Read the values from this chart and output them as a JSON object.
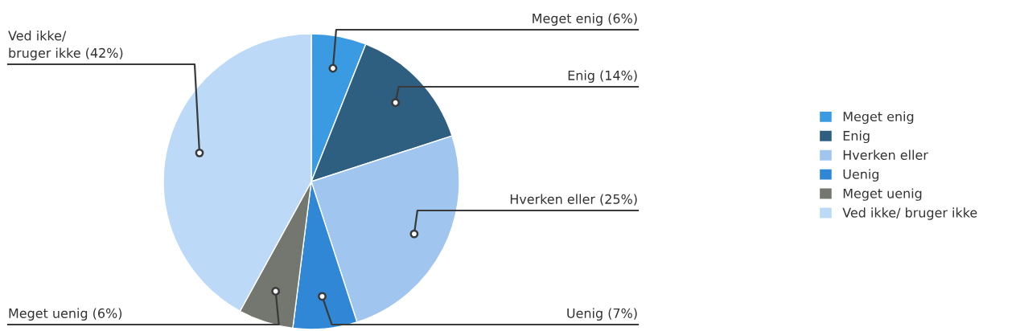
{
  "chart_data": {
    "type": "pie",
    "categories": [
      "Meget enig",
      "Enig",
      "Hverken eller",
      "Uenig",
      "Meget uenig",
      "Ved ikke/ bruger ikke"
    ],
    "values": [
      6,
      14,
      25,
      7,
      6,
      42
    ],
    "colors": [
      "#3a9be3",
      "#2f5f80",
      "#a0c5ef",
      "#2f87d6",
      "#74776f",
      "#bcd9f7"
    ],
    "value_labels": [
      "Meget enig (6%)",
      "Enig (14%)",
      "Hverken eller (25%)",
      "Uenig (7%)",
      "Meget uenig (6%)",
      "Ved ikke/\nbruger ikke (42%)"
    ],
    "legend": "right"
  }
}
